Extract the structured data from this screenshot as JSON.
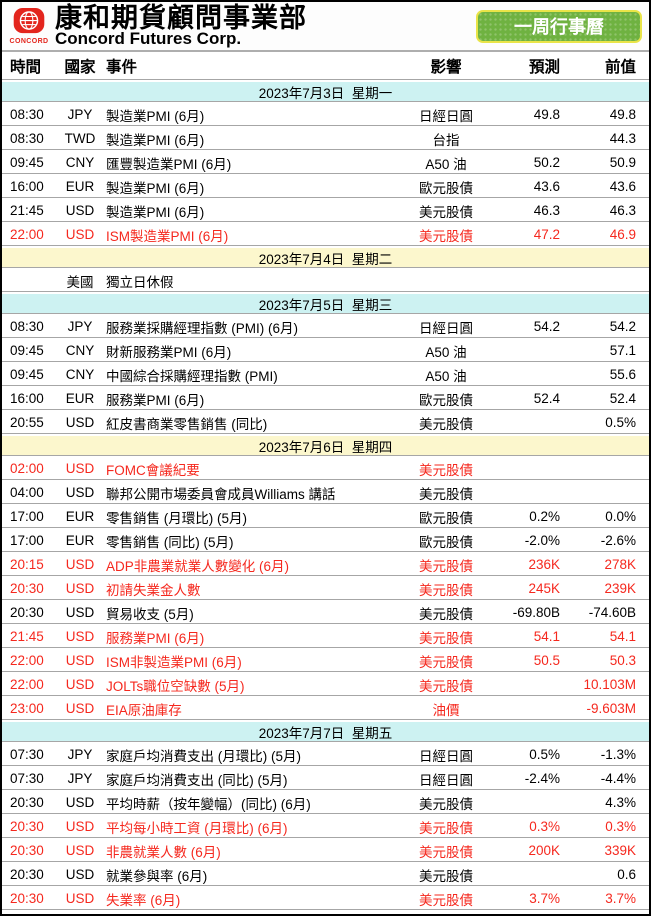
{
  "header": {
    "logo_text": "CONCORD",
    "brand_cn": "康和期貨顧問事業部",
    "brand_en": "Concord Futures Corp.",
    "button_label": "一周行事曆"
  },
  "colors": {
    "logo_red": "#e3251d",
    "highlight_red": "#f5281e",
    "button_green": "#6fb241",
    "button_border_yellow": "#e9e448",
    "date_band_cyan": "#cdf2f2",
    "date_band_yellow": "#fcf7cd"
  },
  "table": {
    "columns": [
      "時間",
      "國家",
      "事件",
      "影響",
      "預測",
      "前值"
    ],
    "sections": [
      {
        "date": "2023年7月3日  星期一",
        "band": "cyan",
        "rows": [
          {
            "time": "08:30",
            "country": "JPY",
            "event": "製造業PMI (6月)",
            "impact": "日經日圓",
            "forecast": "49.8",
            "previous": "49.8",
            "red": false
          },
          {
            "time": "08:30",
            "country": "TWD",
            "event": "製造業PMI (6月)",
            "impact": "台指",
            "forecast": "",
            "previous": "44.3",
            "red": false
          },
          {
            "time": "09:45",
            "country": "CNY",
            "event": "匯豐製造業PMI (6月)",
            "impact": "A50 油",
            "forecast": "50.2",
            "previous": "50.9",
            "red": false
          },
          {
            "time": "16:00",
            "country": "EUR",
            "event": "製造業PMI (6月)",
            "impact": "歐元股債",
            "forecast": "43.6",
            "previous": "43.6",
            "red": false
          },
          {
            "time": "21:45",
            "country": "USD",
            "event": "製造業PMI (6月)",
            "impact": "美元股債",
            "forecast": "46.3",
            "previous": "46.3",
            "red": false
          },
          {
            "time": "22:00",
            "country": "USD",
            "event": "ISM製造業PMI (6月)",
            "impact": "美元股債",
            "forecast": "47.2",
            "previous": "46.9",
            "red": true
          }
        ]
      },
      {
        "date": "2023年7月4日  星期二",
        "band": "yellow",
        "rows": [
          {
            "time": "",
            "country": "美國",
            "event": "獨立日休假",
            "impact": "",
            "forecast": "",
            "previous": "",
            "red": false
          }
        ]
      },
      {
        "date": "2023年7月5日  星期三",
        "band": "cyan",
        "rows": [
          {
            "time": "08:30",
            "country": "JPY",
            "event": "服務業採購經理指數 (PMI) (6月)",
            "impact": "日經日圓",
            "forecast": "54.2",
            "previous": "54.2",
            "red": false
          },
          {
            "time": "09:45",
            "country": "CNY",
            "event": "財新服務業PMI (6月)",
            "impact": "A50 油",
            "forecast": "",
            "previous": "57.1",
            "red": false
          },
          {
            "time": "09:45",
            "country": "CNY",
            "event": "中國綜合採購經理指數 (PMI)",
            "impact": "A50 油",
            "forecast": "",
            "previous": "55.6",
            "red": false
          },
          {
            "time": "16:00",
            "country": "EUR",
            "event": "服務業PMI (6月)",
            "impact": "歐元股債",
            "forecast": "52.4",
            "previous": "52.4",
            "red": false
          },
          {
            "time": "20:55",
            "country": "USD",
            "event": "紅皮書商業零售銷售 (同比)",
            "impact": "美元股債",
            "forecast": "",
            "previous": "0.5%",
            "red": false
          }
        ]
      },
      {
        "date": "2023年7月6日  星期四",
        "band": "yellow",
        "rows": [
          {
            "time": "02:00",
            "country": "USD",
            "event": "FOMC會議紀要",
            "impact": "美元股債",
            "forecast": "",
            "previous": "",
            "red": true
          },
          {
            "time": "04:00",
            "country": "USD",
            "event": "聯邦公開市場委員會成員Williams 講話",
            "impact": "美元股債",
            "forecast": "",
            "previous": "",
            "red": false
          },
          {
            "time": "17:00",
            "country": "EUR",
            "event": "零售銷售 (月環比) (5月)",
            "impact": "歐元股債",
            "forecast": "0.2%",
            "previous": "0.0%",
            "red": false
          },
          {
            "time": "17:00",
            "country": "EUR",
            "event": "零售銷售 (同比) (5月)",
            "impact": "歐元股債",
            "forecast": "-2.0%",
            "previous": "-2.6%",
            "red": false
          },
          {
            "time": "20:15",
            "country": "USD",
            "event": "ADP非農業就業人數變化 (6月)",
            "impact": "美元股債",
            "forecast": "236K",
            "previous": "278K",
            "red": true
          },
          {
            "time": "20:30",
            "country": "USD",
            "event": "初請失業金人數",
            "impact": "美元股債",
            "forecast": "245K",
            "previous": "239K",
            "red": true
          },
          {
            "time": "20:30",
            "country": "USD",
            "event": "貿易收支 (5月)",
            "impact": "美元股債",
            "forecast": "-69.80B",
            "previous": "-74.60B",
            "red": false
          },
          {
            "time": "21:45",
            "country": "USD",
            "event": "服務業PMI (6月)",
            "impact": "美元股債",
            "forecast": "54.1",
            "previous": "54.1",
            "red": true
          },
          {
            "time": "22:00",
            "country": "USD",
            "event": "ISM非製造業PMI (6月)",
            "impact": "美元股債",
            "forecast": "50.5",
            "previous": "50.3",
            "red": true
          },
          {
            "time": "22:00",
            "country": "USD",
            "event": "JOLTs職位空缺數 (5月)",
            "impact": "美元股債",
            "forecast": "",
            "previous": "10.103M",
            "red": true
          },
          {
            "time": "23:00",
            "country": "USD",
            "event": "EIA原油庫存",
            "impact": "油價",
            "forecast": "",
            "previous": "-9.603M",
            "red": true
          }
        ]
      },
      {
        "date": "2023年7月7日  星期五",
        "band": "cyan",
        "rows": [
          {
            "time": "07:30",
            "country": "JPY",
            "event": "家庭戶均消費支出 (月環比) (5月)",
            "impact": "日經日圓",
            "forecast": "0.5%",
            "previous": "-1.3%",
            "red": false
          },
          {
            "time": "07:30",
            "country": "JPY",
            "event": "家庭戶均消費支出 (同比) (5月)",
            "impact": "日經日圓",
            "forecast": "-2.4%",
            "previous": "-4.4%",
            "red": false
          },
          {
            "time": "20:30",
            "country": "USD",
            "event": "平均時薪（按年變幅）(同比) (6月)",
            "impact": "美元股債",
            "forecast": "",
            "previous": "4.3%",
            "red": false
          },
          {
            "time": "20:30",
            "country": "USD",
            "event": "平均每小時工資 (月環比) (6月)",
            "impact": "美元股債",
            "forecast": "0.3%",
            "previous": "0.3%",
            "red": true
          },
          {
            "time": "20:30",
            "country": "USD",
            "event": "非農就業人數 (6月)",
            "impact": "美元股債",
            "forecast": "200K",
            "previous": "339K",
            "red": true
          },
          {
            "time": "20:30",
            "country": "USD",
            "event": "就業參與率 (6月)",
            "impact": "美元股債",
            "forecast": "",
            "previous": "0.6",
            "red": false
          },
          {
            "time": "20:30",
            "country": "USD",
            "event": "失業率 (6月)",
            "impact": "美元股債",
            "forecast": "3.7%",
            "previous": "3.7%",
            "red": true
          }
        ]
      }
    ]
  }
}
